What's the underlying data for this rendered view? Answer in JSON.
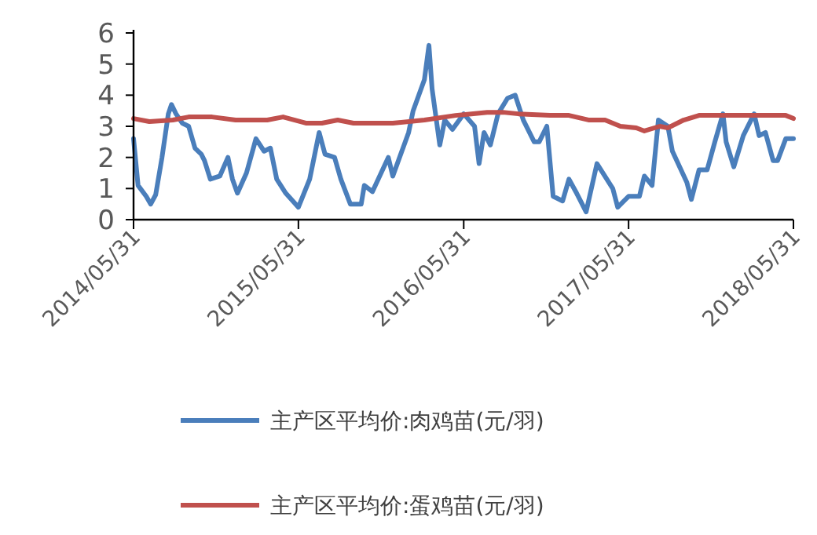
{
  "chart_data": {
    "type": "line",
    "legend": "bottom",
    "xlim": [
      "2014-05-31",
      "2018-05-31"
    ],
    "xticks": [
      {
        "value": "2014-05-31",
        "label": "2014/05/31"
      },
      {
        "value": "2015-05-31",
        "label": "2015/05/31"
      },
      {
        "value": "2016-05-31",
        "label": "2016/05/31"
      },
      {
        "value": "2017-05-31",
        "label": "2017/05/31"
      },
      {
        "value": "2018-05-31",
        "label": "2018/05/31"
      }
    ],
    "ylim": [
      0,
      6
    ],
    "yticks": [
      0,
      1,
      2,
      3,
      4,
      5,
      6
    ],
    "series": [
      {
        "name": "主产区平均价:肉鸡苗(元/羽)",
        "color": "#4a7ebb",
        "x": [
          "2014-05-31",
          "2014-06-10",
          "2014-06-28",
          "2014-07-08",
          "2014-07-19",
          "2014-08-02",
          "2014-08-16",
          "2014-08-23",
          "2014-09-02",
          "2014-09-16",
          "2014-09-30",
          "2014-10-14",
          "2014-10-28",
          "2014-11-04",
          "2014-11-17",
          "2014-12-08",
          "2014-12-26",
          "2015-01-05",
          "2015-01-16",
          "2015-02-05",
          "2015-02-26",
          "2015-03-16",
          "2015-03-30",
          "2015-04-13",
          "2015-05-03",
          "2015-05-31",
          "2015-06-25",
          "2015-07-16",
          "2015-07-29",
          "2015-08-19",
          "2015-09-02",
          "2015-09-23",
          "2015-10-17",
          "2015-10-24",
          "2015-11-11",
          "2015-12-16",
          "2015-12-26",
          "2016-01-30",
          "2016-02-09",
          "2016-03-05",
          "2016-03-15",
          "2016-03-22",
          "2016-04-08",
          "2016-04-19",
          "2016-05-06",
          "2016-05-31",
          "2016-06-24",
          "2016-07-04",
          "2016-07-15",
          "2016-07-29",
          "2016-08-15",
          "2016-09-05",
          "2016-09-22",
          "2016-10-10",
          "2016-11-03",
          "2016-11-14",
          "2016-12-01",
          "2016-12-15",
          "2017-01-05",
          "2017-01-19",
          "2017-02-05",
          "2017-02-26",
          "2017-03-22",
          "2017-04-26",
          "2017-05-07",
          "2017-05-31",
          "2017-06-24",
          "2017-07-05",
          "2017-07-22",
          "2017-08-05",
          "2017-08-26",
          "2017-09-05",
          "2017-10-07",
          "2017-10-17",
          "2017-11-03",
          "2017-11-21",
          "2017-12-08",
          "2017-12-26",
          "2018-01-02",
          "2018-01-19",
          "2018-02-09",
          "2018-03-05",
          "2018-03-16",
          "2018-03-30",
          "2018-04-16",
          "2018-04-26",
          "2018-05-14",
          "2018-05-31"
        ],
        "values": [
          2.6,
          1.1,
          0.75,
          0.5,
          0.8,
          2.0,
          3.4,
          3.7,
          3.4,
          3.1,
          3.0,
          2.3,
          2.1,
          1.9,
          1.3,
          1.4,
          2.0,
          1.3,
          0.85,
          1.5,
          2.6,
          2.2,
          2.3,
          1.3,
          0.85,
          0.4,
          1.3,
          2.8,
          2.1,
          2.0,
          1.3,
          0.5,
          0.5,
          1.1,
          0.9,
          2.0,
          1.4,
          2.8,
          3.5,
          4.5,
          5.6,
          4.2,
          2.4,
          3.2,
          2.9,
          3.4,
          3.0,
          1.8,
          2.8,
          2.4,
          3.4,
          3.9,
          4.0,
          3.2,
          2.5,
          2.5,
          3.0,
          0.75,
          0.6,
          1.3,
          0.85,
          0.25,
          1.8,
          1.0,
          0.4,
          0.75,
          0.75,
          1.4,
          1.1,
          3.2,
          3.0,
          2.2,
          1.2,
          0.65,
          1.6,
          1.6,
          2.5,
          3.4,
          2.5,
          1.7,
          2.7,
          3.4,
          2.7,
          2.8,
          1.9,
          1.9,
          2.6,
          2.6
        ]
      },
      {
        "name": "主产区平均价:蛋鸡苗(元/羽)",
        "color": "#c0504d",
        "x": [
          "2014-05-31",
          "2014-07-05",
          "2014-08-26",
          "2014-09-30",
          "2014-11-21",
          "2015-01-12",
          "2015-03-23",
          "2015-04-27",
          "2015-06-18",
          "2015-07-22",
          "2015-08-26",
          "2015-09-30",
          "2015-12-26",
          "2016-03-05",
          "2016-05-13",
          "2016-06-17",
          "2016-07-22",
          "2016-08-26",
          "2016-09-29",
          "2016-12-08",
          "2017-01-19",
          "2017-03-05",
          "2017-04-09",
          "2017-05-13",
          "2017-06-17",
          "2017-07-05",
          "2017-08-08",
          "2017-08-26",
          "2017-09-30",
          "2017-11-03",
          "2017-12-26",
          "2018-03-05",
          "2018-05-14",
          "2018-05-31"
        ],
        "values": [
          3.25,
          3.15,
          3.2,
          3.3,
          3.3,
          3.2,
          3.2,
          3.3,
          3.1,
          3.1,
          3.2,
          3.1,
          3.1,
          3.2,
          3.35,
          3.4,
          3.45,
          3.45,
          3.4,
          3.35,
          3.35,
          3.2,
          3.2,
          3.0,
          2.95,
          2.85,
          3.0,
          2.95,
          3.2,
          3.35,
          3.35,
          3.35,
          3.35,
          3.25
        ]
      }
    ]
  }
}
